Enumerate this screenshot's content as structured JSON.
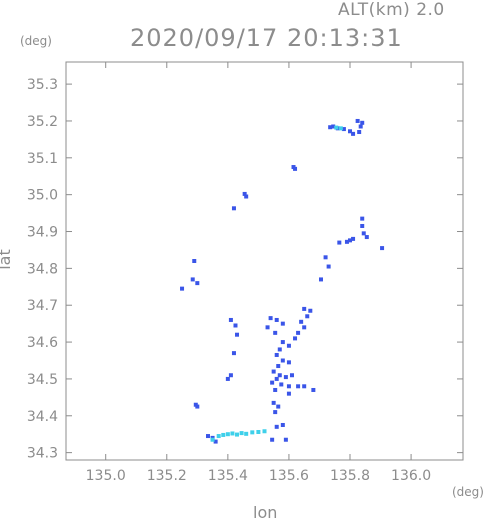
{
  "header": {
    "alt_label": "ALT(km) 2.0",
    "timestamp": "2020/09/17 20:13:31"
  },
  "chart_data": {
    "type": "scatter",
    "title": "2020/09/17 20:13:31",
    "subtitle": "ALT(km) 2.0",
    "xlabel": "lon",
    "ylabel": "lat",
    "x_unit": "(deg)",
    "y_unit": "(deg)",
    "xlim": [
      134.87,
      136.17
    ],
    "ylim": [
      34.28,
      35.36
    ],
    "xticks": [
      135.0,
      135.2,
      135.4,
      135.6,
      135.8,
      136.0
    ],
    "xtick_labels": [
      "135.0",
      "135.2",
      "135.4",
      "135.6",
      "135.8",
      "136.0"
    ],
    "yticks": [
      34.3,
      34.4,
      34.5,
      34.6,
      34.7,
      34.8,
      34.9,
      35.0,
      35.1,
      35.2,
      35.3
    ],
    "ytick_labels": [
      "34.3",
      "34.4",
      "34.5",
      "34.6",
      "34.7",
      "34.8",
      "34.9",
      "35.0",
      "35.1",
      "35.2",
      "35.3"
    ],
    "grid": false,
    "colors": {
      "primary": "#3a55e8",
      "secondary": "#3fd0ea",
      "mid": "#3a8ad8",
      "axis": "#8c8c8c"
    },
    "series": [
      {
        "color": "#3a55e8",
        "points": [
          [
            135.735,
            35.183
          ],
          [
            135.745,
            35.185
          ],
          [
            135.76,
            35.18
          ],
          [
            135.78,
            35.178
          ],
          [
            135.8,
            35.172
          ],
          [
            135.81,
            35.165
          ],
          [
            135.83,
            35.17
          ],
          [
            135.835,
            35.185
          ],
          [
            135.84,
            35.195
          ],
          [
            135.825,
            35.2
          ],
          [
            135.615,
            35.075
          ],
          [
            135.62,
            35.07
          ],
          [
            135.455,
            35.002
          ],
          [
            135.46,
            34.995
          ],
          [
            135.42,
            34.963
          ],
          [
            135.84,
            34.935
          ],
          [
            135.84,
            34.915
          ],
          [
            135.845,
            34.895
          ],
          [
            135.855,
            34.885
          ],
          [
            135.81,
            34.88
          ],
          [
            135.8,
            34.876
          ],
          [
            135.79,
            34.872
          ],
          [
            135.905,
            34.855
          ],
          [
            135.765,
            34.87
          ],
          [
            135.72,
            34.83
          ],
          [
            135.73,
            34.805
          ],
          [
            135.705,
            34.77
          ],
          [
            135.29,
            34.82
          ],
          [
            135.285,
            34.77
          ],
          [
            135.3,
            34.76
          ],
          [
            135.25,
            34.745
          ],
          [
            135.65,
            34.69
          ],
          [
            135.67,
            34.685
          ],
          [
            135.66,
            34.67
          ],
          [
            135.64,
            34.655
          ],
          [
            135.65,
            34.64
          ],
          [
            135.63,
            34.625
          ],
          [
            135.62,
            34.61
          ],
          [
            135.54,
            34.665
          ],
          [
            135.56,
            34.66
          ],
          [
            135.58,
            34.65
          ],
          [
            135.53,
            34.64
          ],
          [
            135.555,
            34.625
          ],
          [
            135.41,
            34.66
          ],
          [
            135.425,
            34.645
          ],
          [
            135.43,
            34.62
          ],
          [
            135.58,
            34.6
          ],
          [
            135.6,
            34.59
          ],
          [
            135.57,
            34.58
          ],
          [
            135.56,
            34.565
          ],
          [
            135.58,
            34.55
          ],
          [
            135.6,
            34.545
          ],
          [
            135.565,
            34.535
          ],
          [
            135.55,
            34.52
          ],
          [
            135.57,
            34.51
          ],
          [
            135.59,
            34.505
          ],
          [
            135.61,
            34.51
          ],
          [
            135.56,
            34.5
          ],
          [
            135.545,
            34.49
          ],
          [
            135.575,
            34.485
          ],
          [
            135.6,
            34.48
          ],
          [
            135.63,
            34.48
          ],
          [
            135.65,
            34.48
          ],
          [
            135.68,
            34.47
          ],
          [
            135.555,
            34.47
          ],
          [
            135.6,
            34.46
          ],
          [
            135.55,
            34.435
          ],
          [
            135.565,
            34.425
          ],
          [
            135.555,
            34.41
          ],
          [
            135.41,
            34.51
          ],
          [
            135.4,
            34.5
          ],
          [
            135.42,
            34.57
          ],
          [
            135.295,
            34.43
          ],
          [
            135.3,
            34.425
          ],
          [
            135.58,
            34.375
          ],
          [
            135.56,
            34.37
          ],
          [
            135.59,
            34.335
          ],
          [
            135.545,
            34.335
          ],
          [
            135.335,
            34.345
          ],
          [
            135.35,
            34.34
          ],
          [
            135.36,
            34.33
          ]
        ]
      },
      {
        "color": "#3fd0ea",
        "points": [
          [
            135.755,
            35.182
          ],
          [
            135.77,
            35.18
          ],
          [
            135.37,
            34.345
          ],
          [
            135.385,
            34.348
          ],
          [
            135.4,
            34.35
          ],
          [
            135.415,
            34.352
          ],
          [
            135.43,
            34.349
          ],
          [
            135.445,
            34.353
          ],
          [
            135.46,
            34.351
          ],
          [
            135.48,
            34.355
          ],
          [
            135.5,
            34.356
          ],
          [
            135.52,
            34.358
          ],
          [
            135.35,
            34.335
          ]
        ]
      }
    ]
  }
}
